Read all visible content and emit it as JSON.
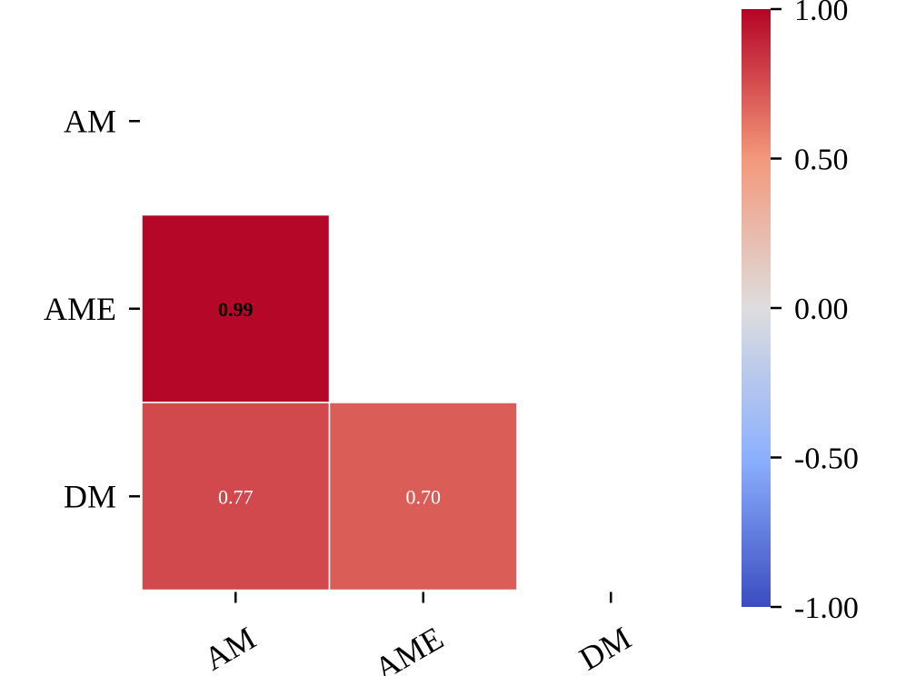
{
  "chart_data": {
    "type": "heatmap",
    "title": "",
    "xlabel": "",
    "ylabel": "",
    "x_categories": [
      "AM",
      "AME",
      "DM"
    ],
    "y_categories": [
      "AM",
      "AME",
      "DM"
    ],
    "mask": "upper-triangle-and-diagonal",
    "cells": [
      {
        "row": "AME",
        "col": "AM",
        "value": 0.99,
        "label": "0.99",
        "label_color": "#000000",
        "bold": true
      },
      {
        "row": "DM",
        "col": "AM",
        "value": 0.77,
        "label": "0.77",
        "label_color": "#ffffff",
        "bold": false
      },
      {
        "row": "DM",
        "col": "AME",
        "value": 0.7,
        "label": "0.70",
        "label_color": "#ffffff",
        "bold": false
      }
    ],
    "colorbar": {
      "colormap": "coolwarm",
      "vmin": -1.0,
      "vmax": 1.0,
      "ticks": [
        1.0,
        0.5,
        0.0,
        -0.5,
        -1.0
      ],
      "tick_labels": [
        "1.00",
        "0.50",
        "0.00",
        "-0.50",
        "-1.00"
      ],
      "stops": [
        {
          "value": -1.0,
          "color": "#3b4cc0"
        },
        {
          "value": -0.5,
          "color": "#8db0fe"
        },
        {
          "value": 0.0,
          "color": "#dddddd"
        },
        {
          "value": 0.5,
          "color": "#f4987a"
        },
        {
          "value": 1.0,
          "color": "#b40426"
        }
      ]
    },
    "x_tick_rotation_deg": -30,
    "cell_border_color": "#ffffff"
  }
}
